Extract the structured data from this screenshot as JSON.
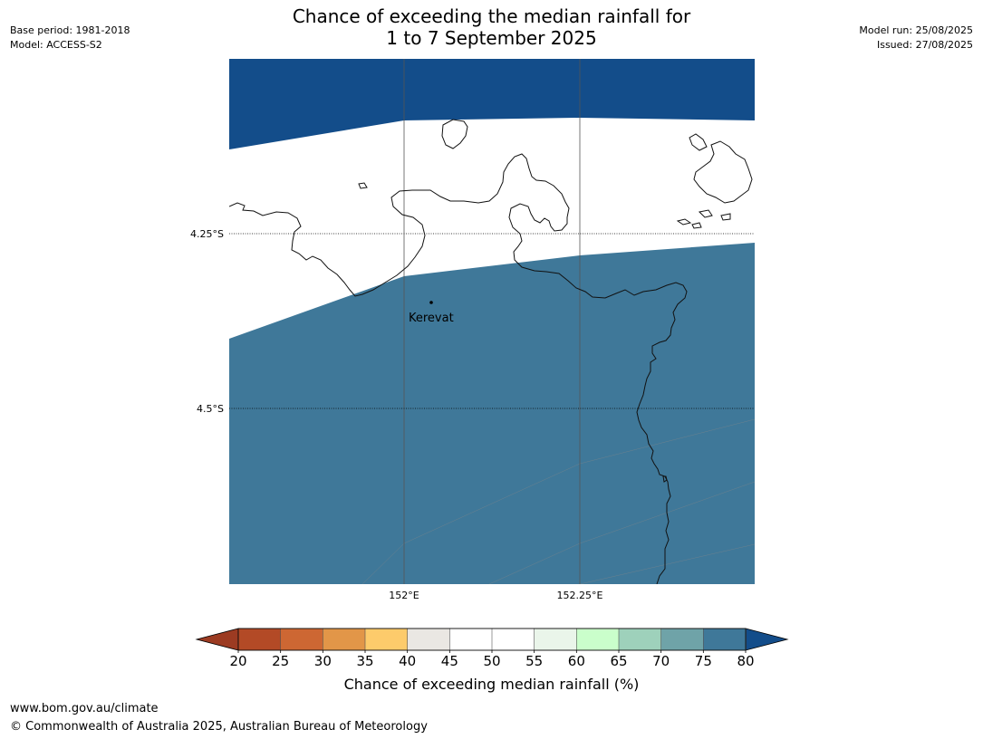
{
  "title_line1": "Chance of exceeding the median rainfall for",
  "title_line2": "1 to 7 September 2025",
  "meta_left": {
    "base_period": "Base period: 1981-2018",
    "model": "Model: ACCESS-S2"
  },
  "meta_right": {
    "model_run": "Model run: 25/08/2025",
    "issued": "Issued: 27/08/2025"
  },
  "map": {
    "place_label": "Kerevat",
    "lat_labels": [
      "4.25°S",
      "4.5°S"
    ],
    "lon_labels": [
      "152°E",
      "152.25°E"
    ],
    "band_colors": [
      "#134d8a",
      "#3f7899",
      "#6fa3a8",
      "#9ed1bb",
      "#cafecb",
      "#eaf5ea",
      "#ffffff"
    ]
  },
  "colorbar": {
    "title": "Chance of exceeding median rainfall (%)",
    "ticks": [
      "20",
      "25",
      "30",
      "35",
      "40",
      "45",
      "50",
      "55",
      "60",
      "65",
      "70",
      "75",
      "80"
    ],
    "low_color": "#9c3b22",
    "high_color": "#134d8a",
    "colors": [
      "#b34a26",
      "#cd6733",
      "#e29648",
      "#fdcb6b",
      "#eae7e3",
      "#ffffff",
      "#ffffff",
      "#eaf5ea",
      "#cafecb",
      "#9ed1bb",
      "#6fa3a8",
      "#3f7899"
    ]
  },
  "footer": {
    "url": "www.bom.gov.au/climate",
    "copyright": "© Commonwealth of Australia 2025, Australian Bureau of Meteorology"
  }
}
